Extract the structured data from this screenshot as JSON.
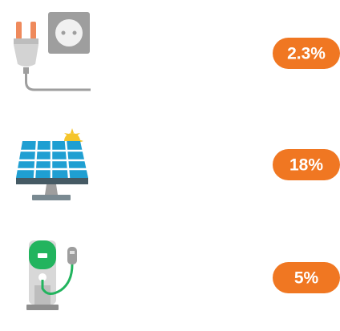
{
  "items": [
    {
      "label": "2.3%"
    },
    {
      "label": "18%"
    },
    {
      "label": "5%"
    }
  ]
}
